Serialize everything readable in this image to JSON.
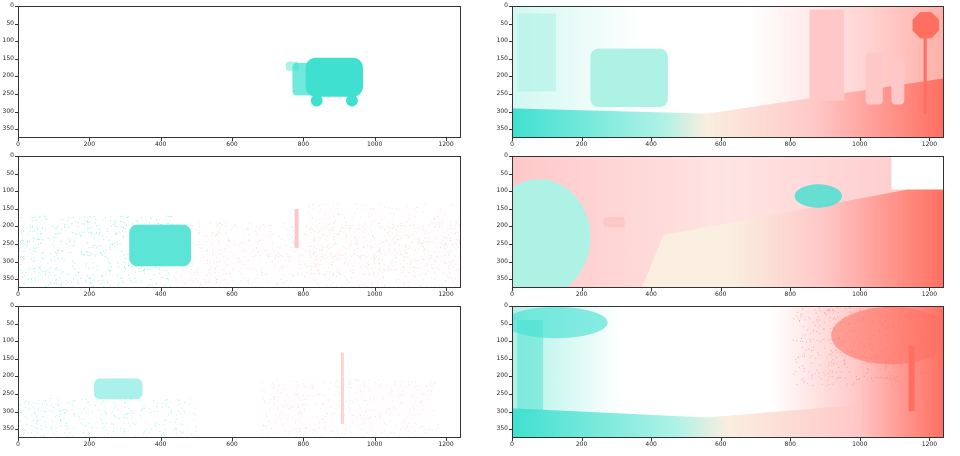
{
  "colors": {
    "cyan": "#40e0d0",
    "cyan_light": "#aef2e6",
    "pink": "#ffc8c8",
    "pink_light": "#ffe4e4",
    "salmon": "#ff6f61",
    "cream": "#faeee0"
  },
  "panels": [
    {
      "id": "top-left",
      "scene": "sparse-van",
      "yticks": [
        "0",
        "50",
        "100",
        "150",
        "200",
        "250",
        "300",
        "350"
      ],
      "xticks": [
        "0",
        "200",
        "400",
        "600",
        "800",
        "1000",
        "1200"
      ]
    },
    {
      "id": "top-right",
      "scene": "dense-street-stop-sign",
      "yticks": [
        "0",
        "50",
        "100",
        "150",
        "200",
        "250",
        "300",
        "350"
      ],
      "xticks": [
        "0",
        "200",
        "400",
        "600",
        "800",
        "1000",
        "1200"
      ]
    },
    {
      "id": "middle-left",
      "scene": "sparse-car-road",
      "yticks": [
        "0",
        "50",
        "100",
        "150",
        "200",
        "250",
        "300",
        "350"
      ],
      "xticks": [
        "0",
        "200",
        "400",
        "600",
        "800",
        "1000",
        "1200"
      ]
    },
    {
      "id": "middle-right",
      "scene": "dense-road-near-car",
      "yticks": [
        "0",
        "50",
        "100",
        "150",
        "200",
        "250",
        "300",
        "350"
      ],
      "xticks": [
        "0",
        "200",
        "400",
        "600",
        "800",
        "1000",
        "1200"
      ]
    },
    {
      "id": "bottom-left",
      "scene": "sparse-faint-car",
      "yticks": [
        "0",
        "50",
        "100",
        "150",
        "200",
        "250",
        "300",
        "350"
      ],
      "xticks": [
        "0",
        "200",
        "400",
        "600",
        "800",
        "1000",
        "1200"
      ]
    },
    {
      "id": "bottom-right",
      "scene": "dense-trees-building",
      "yticks": [
        "0",
        "50",
        "100",
        "150",
        "200",
        "250",
        "300",
        "350"
      ],
      "xticks": [
        "0",
        "200",
        "400",
        "600",
        "800",
        "1000",
        "1200"
      ]
    }
  ]
}
